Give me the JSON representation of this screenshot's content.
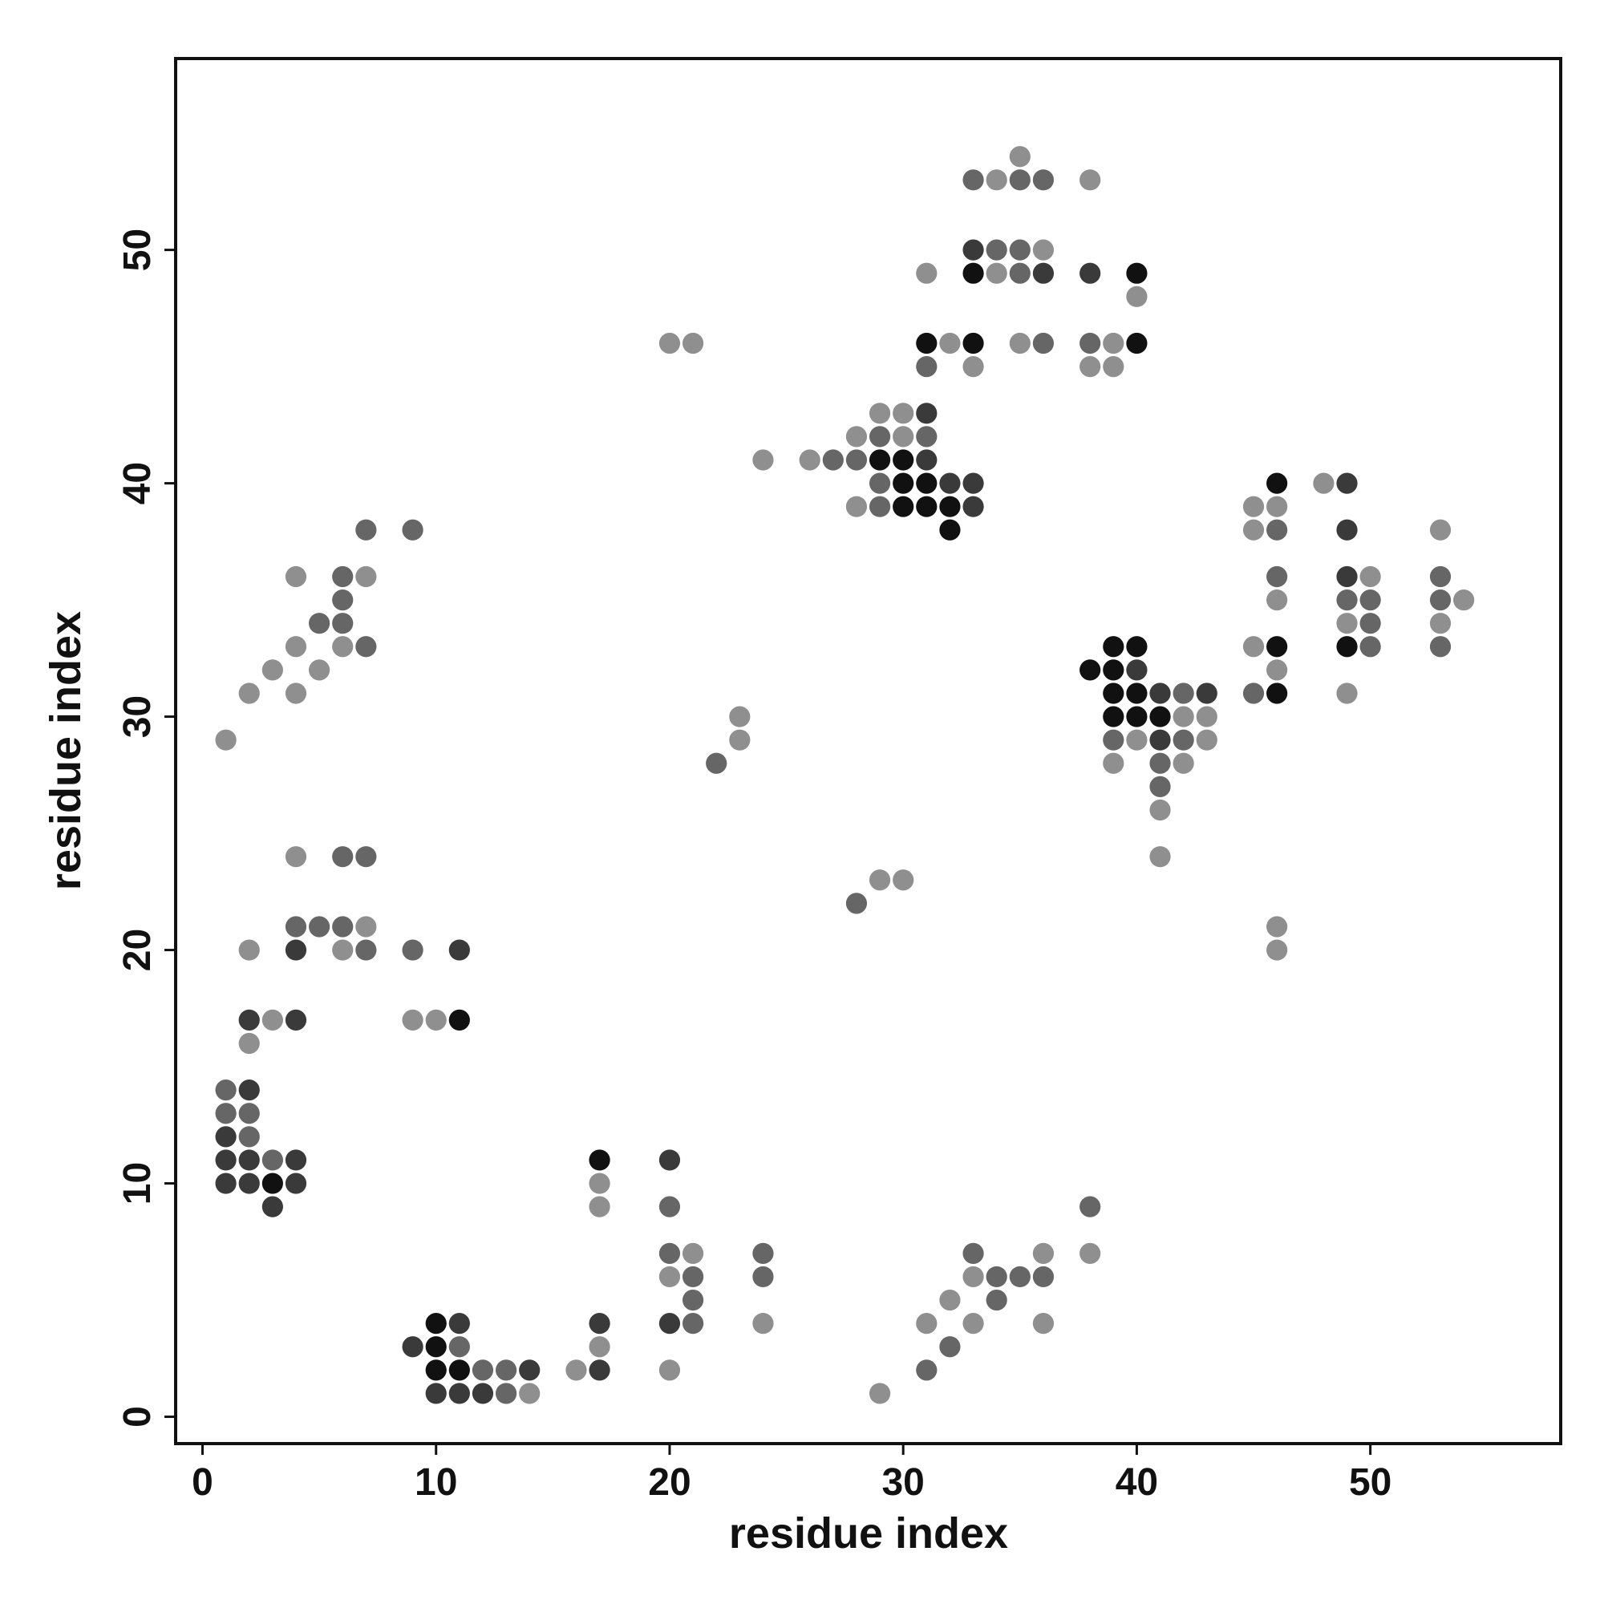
{
  "chart_data": {
    "type": "scatter",
    "x_label": "residue index",
    "y_label": "residue index",
    "xlim": [
      -1.15,
      58.15
    ],
    "ylim": [
      -1.15,
      58.2
    ],
    "xticks": [
      0,
      10,
      20,
      30,
      40,
      50
    ],
    "yticks": [
      0,
      10,
      20,
      30,
      40,
      50
    ],
    "marker_radius": 0.45,
    "series": [
      {
        "color": "#111111",
        "x": [
          3,
          10,
          10,
          10,
          11,
          11,
          17,
          29,
          30,
          30,
          30,
          31,
          31,
          31,
          32,
          32,
          33,
          33,
          38,
          39,
          39,
          39,
          39,
          40,
          40,
          40,
          40,
          40,
          41,
          46,
          46,
          46,
          49
        ],
        "y": [
          10,
          4,
          3,
          2,
          17,
          2,
          11,
          41,
          41,
          40,
          39,
          46,
          40,
          39,
          39,
          38,
          49,
          46,
          32,
          33,
          32,
          31,
          30,
          49,
          46,
          33,
          31,
          30,
          30,
          40,
          33,
          31,
          33
        ]
      },
      {
        "color": "#3a3a3a",
        "x": [
          1,
          1,
          1,
          2,
          2,
          2,
          2,
          3,
          4,
          4,
          4,
          4,
          9,
          10,
          11,
          11,
          11,
          12,
          14,
          17,
          17,
          20,
          20,
          31,
          31,
          32,
          33,
          33,
          33,
          36,
          38,
          40,
          41,
          41,
          43,
          49,
          49,
          49
        ],
        "y": [
          12,
          11,
          10,
          17,
          14,
          11,
          10,
          9,
          20,
          17,
          11,
          10,
          3,
          1,
          20,
          4,
          1,
          1,
          2,
          4,
          2,
          11,
          4,
          43,
          41,
          40,
          50,
          40,
          39,
          49,
          49,
          32,
          31,
          29,
          31,
          40,
          38,
          36
        ]
      },
      {
        "color": "#666666",
        "x": [
          1,
          1,
          2,
          2,
          3,
          4,
          5,
          5,
          6,
          6,
          6,
          6,
          6,
          7,
          7,
          7,
          7,
          9,
          9,
          11,
          12,
          13,
          13,
          20,
          20,
          21,
          21,
          21,
          22,
          24,
          24,
          27,
          28,
          28,
          29,
          29,
          29,
          31,
          31,
          31,
          32,
          33,
          33,
          34,
          34,
          34,
          35,
          35,
          35,
          35,
          36,
          36,
          36,
          38,
          38,
          39,
          41,
          41,
          42,
          42,
          45,
          46,
          46,
          49,
          50,
          50,
          50,
          53,
          53,
          53
        ],
        "y": [
          14,
          13,
          13,
          12,
          11,
          21,
          34,
          21,
          36,
          35,
          34,
          24,
          21,
          38,
          33,
          24,
          20,
          38,
          20,
          3,
          2,
          2,
          1,
          9,
          7,
          6,
          5,
          4,
          28,
          7,
          6,
          41,
          41,
          22,
          42,
          40,
          39,
          45,
          42,
          2,
          3,
          53,
          7,
          50,
          6,
          5,
          53,
          50,
          49,
          6,
          53,
          46,
          6,
          46,
          9,
          29,
          28,
          27,
          31,
          29,
          31,
          38,
          36,
          35,
          35,
          34,
          33,
          36,
          35,
          33
        ]
      },
      {
        "color": "#8f8f8f",
        "x": [
          1,
          2,
          2,
          2,
          3,
          3,
          4,
          4,
          4,
          4,
          5,
          6,
          6,
          7,
          7,
          9,
          10,
          14,
          16,
          17,
          17,
          17,
          20,
          20,
          20,
          21,
          21,
          23,
          23,
          24,
          24,
          26,
          28,
          28,
          29,
          29,
          29,
          30,
          30,
          30,
          31,
          31,
          32,
          32,
          33,
          33,
          33,
          34,
          34,
          35,
          35,
          36,
          36,
          36,
          38,
          38,
          38,
          39,
          39,
          39,
          40,
          40,
          41,
          41,
          42,
          42,
          43,
          43,
          45,
          45,
          45,
          46,
          46,
          46,
          46,
          46,
          48,
          49,
          49,
          50,
          53,
          53,
          54
        ],
        "y": [
          29,
          31,
          20,
          16,
          32,
          17,
          36,
          33,
          31,
          24,
          32,
          33,
          20,
          36,
          21,
          17,
          17,
          1,
          2,
          10,
          9,
          3,
          46,
          6,
          2,
          46,
          7,
          30,
          29,
          41,
          4,
          41,
          42,
          39,
          43,
          23,
          1,
          43,
          42,
          23,
          49,
          4,
          46,
          5,
          45,
          6,
          4,
          53,
          49,
          54,
          46,
          50,
          7,
          4,
          53,
          45,
          7,
          46,
          45,
          28,
          48,
          29,
          26,
          24,
          30,
          28,
          30,
          29,
          39,
          38,
          33,
          39,
          35,
          32,
          21,
          20,
          40,
          34,
          31,
          36,
          38,
          34,
          35
        ]
      }
    ]
  }
}
